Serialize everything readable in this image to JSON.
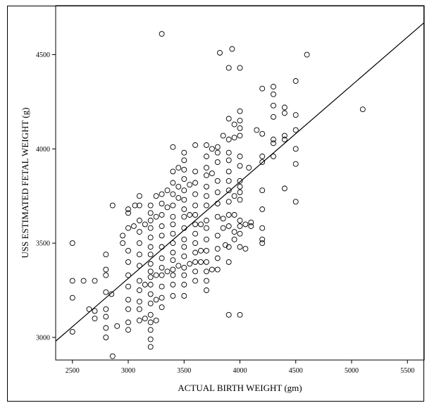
{
  "chart_data": {
    "type": "scatter",
    "xlabel": "ACTUAL BIRTH WEIGHT (gm)",
    "ylabel": "USS ESTIMATED FETAL WEIGHT (g)",
    "xlim": [
      2350,
      5650
    ],
    "ylim": [
      2880,
      4760
    ],
    "xticks": [
      2500,
      3000,
      3500,
      4000,
      4500,
      5000,
      5500
    ],
    "yticks": [
      3000,
      3500,
      4000,
      4500
    ],
    "grid": false,
    "fit_line": {
      "x": [
        2350,
        5650
      ],
      "y": [
        2980,
        4670
      ]
    },
    "series": [
      {
        "marker": "open-circle",
        "points": [
          [
            2500,
            3500
          ],
          [
            2500,
            3300
          ],
          [
            2500,
            3210
          ],
          [
            2500,
            3030
          ],
          [
            2600,
            3300
          ],
          [
            2650,
            3150
          ],
          [
            2700,
            3140
          ],
          [
            2700,
            3300
          ],
          [
            2700,
            3100
          ],
          [
            2800,
            3440
          ],
          [
            2800,
            3360
          ],
          [
            2800,
            3330
          ],
          [
            2800,
            3240
          ],
          [
            2800,
            3150
          ],
          [
            2800,
            3110
          ],
          [
            2800,
            3050
          ],
          [
            2800,
            3000
          ],
          [
            2850,
            3230
          ],
          [
            2860,
            3700
          ],
          [
            2860,
            2900
          ],
          [
            2900,
            3060
          ],
          [
            2950,
            3500
          ],
          [
            2950,
            3540
          ],
          [
            3000,
            3680
          ],
          [
            3000,
            3660
          ],
          [
            3000,
            3580
          ],
          [
            3000,
            3460
          ],
          [
            3000,
            3400
          ],
          [
            3000,
            3330
          ],
          [
            3000,
            3270
          ],
          [
            3000,
            3200
          ],
          [
            3000,
            3150
          ],
          [
            3000,
            3080
          ],
          [
            3000,
            3040
          ],
          [
            3050,
            3590
          ],
          [
            3060,
            3700
          ],
          [
            3100,
            3750
          ],
          [
            3100,
            3700
          ],
          [
            3100,
            3620
          ],
          [
            3100,
            3560
          ],
          [
            3100,
            3500
          ],
          [
            3100,
            3440
          ],
          [
            3100,
            3380
          ],
          [
            3100,
            3300
          ],
          [
            3100,
            3250
          ],
          [
            3100,
            3190
          ],
          [
            3100,
            3150
          ],
          [
            3100,
            3090
          ],
          [
            3150,
            3600
          ],
          [
            3150,
            3280
          ],
          [
            3150,
            3100
          ],
          [
            3200,
            3700
          ],
          [
            3200,
            3660
          ],
          [
            3200,
            3620
          ],
          [
            3200,
            3580
          ],
          [
            3200,
            3530
          ],
          [
            3200,
            3480
          ],
          [
            3200,
            3440
          ],
          [
            3200,
            3390
          ],
          [
            3200,
            3350
          ],
          [
            3200,
            3320
          ],
          [
            3200,
            3280
          ],
          [
            3200,
            3230
          ],
          [
            3200,
            3180
          ],
          [
            3200,
            3120
          ],
          [
            3200,
            3080
          ],
          [
            3200,
            3040
          ],
          [
            3200,
            2990
          ],
          [
            3200,
            2950
          ],
          [
            3250,
            3750
          ],
          [
            3250,
            3640
          ],
          [
            3250,
            3330
          ],
          [
            3250,
            3200
          ],
          [
            3250,
            3090
          ],
          [
            3300,
            4610
          ],
          [
            3300,
            3760
          ],
          [
            3300,
            3710
          ],
          [
            3300,
            3650
          ],
          [
            3300,
            3590
          ],
          [
            3300,
            3540
          ],
          [
            3300,
            3480
          ],
          [
            3300,
            3420
          ],
          [
            3300,
            3370
          ],
          [
            3300,
            3330
          ],
          [
            3300,
            3270
          ],
          [
            3300,
            3210
          ],
          [
            3300,
            3160
          ],
          [
            3350,
            3780
          ],
          [
            3350,
            3690
          ],
          [
            3350,
            3350
          ],
          [
            3400,
            4010
          ],
          [
            3400,
            3880
          ],
          [
            3400,
            3820
          ],
          [
            3400,
            3760
          ],
          [
            3400,
            3700
          ],
          [
            3400,
            3640
          ],
          [
            3400,
            3600
          ],
          [
            3400,
            3550
          ],
          [
            3400,
            3500
          ],
          [
            3400,
            3450
          ],
          [
            3400,
            3410
          ],
          [
            3400,
            3360
          ],
          [
            3400,
            3330
          ],
          [
            3400,
            3280
          ],
          [
            3400,
            3220
          ],
          [
            3450,
            3900
          ],
          [
            3450,
            3800
          ],
          [
            3450,
            3740
          ],
          [
            3450,
            3380
          ],
          [
            3500,
            3980
          ],
          [
            3500,
            3940
          ],
          [
            3500,
            3890
          ],
          [
            3500,
            3840
          ],
          [
            3500,
            3780
          ],
          [
            3500,
            3730
          ],
          [
            3500,
            3680
          ],
          [
            3500,
            3640
          ],
          [
            3500,
            3580
          ],
          [
            3500,
            3520
          ],
          [
            3500,
            3480
          ],
          [
            3500,
            3430
          ],
          [
            3500,
            3370
          ],
          [
            3500,
            3330
          ],
          [
            3500,
            3280
          ],
          [
            3500,
            3220
          ],
          [
            3550,
            3810
          ],
          [
            3550,
            3650
          ],
          [
            3550,
            3390
          ],
          [
            3600,
            4020
          ],
          [
            3600,
            3880
          ],
          [
            3600,
            3820
          ],
          [
            3600,
            3760
          ],
          [
            3600,
            3700
          ],
          [
            3600,
            3650
          ],
          [
            3600,
            3600
          ],
          [
            3600,
            3550
          ],
          [
            3600,
            3500
          ],
          [
            3600,
            3450
          ],
          [
            3600,
            3400
          ],
          [
            3600,
            3350
          ],
          [
            3600,
            3300
          ],
          [
            3650,
            3600
          ],
          [
            3650,
            3460
          ],
          [
            3650,
            3400
          ],
          [
            3700,
            4020
          ],
          [
            3700,
            3960
          ],
          [
            3700,
            3900
          ],
          [
            3700,
            3860
          ],
          [
            3700,
            3800
          ],
          [
            3700,
            3750
          ],
          [
            3700,
            3700
          ],
          [
            3700,
            3620
          ],
          [
            3700,
            3580
          ],
          [
            3700,
            3520
          ],
          [
            3700,
            3460
          ],
          [
            3700,
            3400
          ],
          [
            3700,
            3350
          ],
          [
            3700,
            3300
          ],
          [
            3700,
            3250
          ],
          [
            3750,
            4000
          ],
          [
            3750,
            3870
          ],
          [
            3750,
            3360
          ],
          [
            3800,
            4010
          ],
          [
            3800,
            3980
          ],
          [
            3800,
            3930
          ],
          [
            3800,
            3830
          ],
          [
            3800,
            3770
          ],
          [
            3800,
            3710
          ],
          [
            3800,
            3640
          ],
          [
            3800,
            3540
          ],
          [
            3800,
            3470
          ],
          [
            3800,
            3420
          ],
          [
            3800,
            3360
          ],
          [
            3820,
            4510
          ],
          [
            3850,
            4070
          ],
          [
            3850,
            3630
          ],
          [
            3850,
            3580
          ],
          [
            3870,
            3490
          ],
          [
            3900,
            4430
          ],
          [
            3900,
            4160
          ],
          [
            3900,
            4050
          ],
          [
            3900,
            3980
          ],
          [
            3900,
            3940
          ],
          [
            3900,
            3880
          ],
          [
            3900,
            3830
          ],
          [
            3900,
            3780
          ],
          [
            3900,
            3720
          ],
          [
            3900,
            3650
          ],
          [
            3900,
            3590
          ],
          [
            3900,
            3480
          ],
          [
            3900,
            3400
          ],
          [
            3900,
            3120
          ],
          [
            3930,
            4530
          ],
          [
            3950,
            4130
          ],
          [
            3950,
            4060
          ],
          [
            3950,
            3750
          ],
          [
            3950,
            3650
          ],
          [
            3950,
            3560
          ],
          [
            3950,
            3520
          ],
          [
            4000,
            4430
          ],
          [
            4000,
            4200
          ],
          [
            4000,
            4150
          ],
          [
            4000,
            4110
          ],
          [
            4000,
            4070
          ],
          [
            4000,
            3960
          ],
          [
            4000,
            3910
          ],
          [
            4000,
            3830
          ],
          [
            4000,
            3800
          ],
          [
            4000,
            3770
          ],
          [
            4000,
            3730
          ],
          [
            4000,
            3620
          ],
          [
            4000,
            3590
          ],
          [
            4000,
            3550
          ],
          [
            4000,
            3480
          ],
          [
            4000,
            3120
          ],
          [
            4050,
            3600
          ],
          [
            4050,
            3470
          ],
          [
            4080,
            3900
          ],
          [
            4100,
            3610
          ],
          [
            4100,
            3590
          ],
          [
            4150,
            4100
          ],
          [
            4200,
            4320
          ],
          [
            4200,
            4080
          ],
          [
            4200,
            3960
          ],
          [
            4200,
            3930
          ],
          [
            4200,
            3780
          ],
          [
            4200,
            3680
          ],
          [
            4200,
            3580
          ],
          [
            4200,
            3520
          ],
          [
            4200,
            3500
          ],
          [
            4300,
            4330
          ],
          [
            4300,
            4290
          ],
          [
            4300,
            4230
          ],
          [
            4300,
            4170
          ],
          [
            4300,
            4050
          ],
          [
            4300,
            4030
          ],
          [
            4300,
            3960
          ],
          [
            4400,
            4220
          ],
          [
            4400,
            4190
          ],
          [
            4400,
            4070
          ],
          [
            4400,
            4050
          ],
          [
            4400,
            3790
          ],
          [
            4500,
            4360
          ],
          [
            4500,
            4180
          ],
          [
            4500,
            4100
          ],
          [
            4500,
            4000
          ],
          [
            4500,
            3920
          ],
          [
            4500,
            3720
          ],
          [
            4600,
            4500
          ],
          [
            5100,
            4210
          ]
        ]
      }
    ]
  }
}
